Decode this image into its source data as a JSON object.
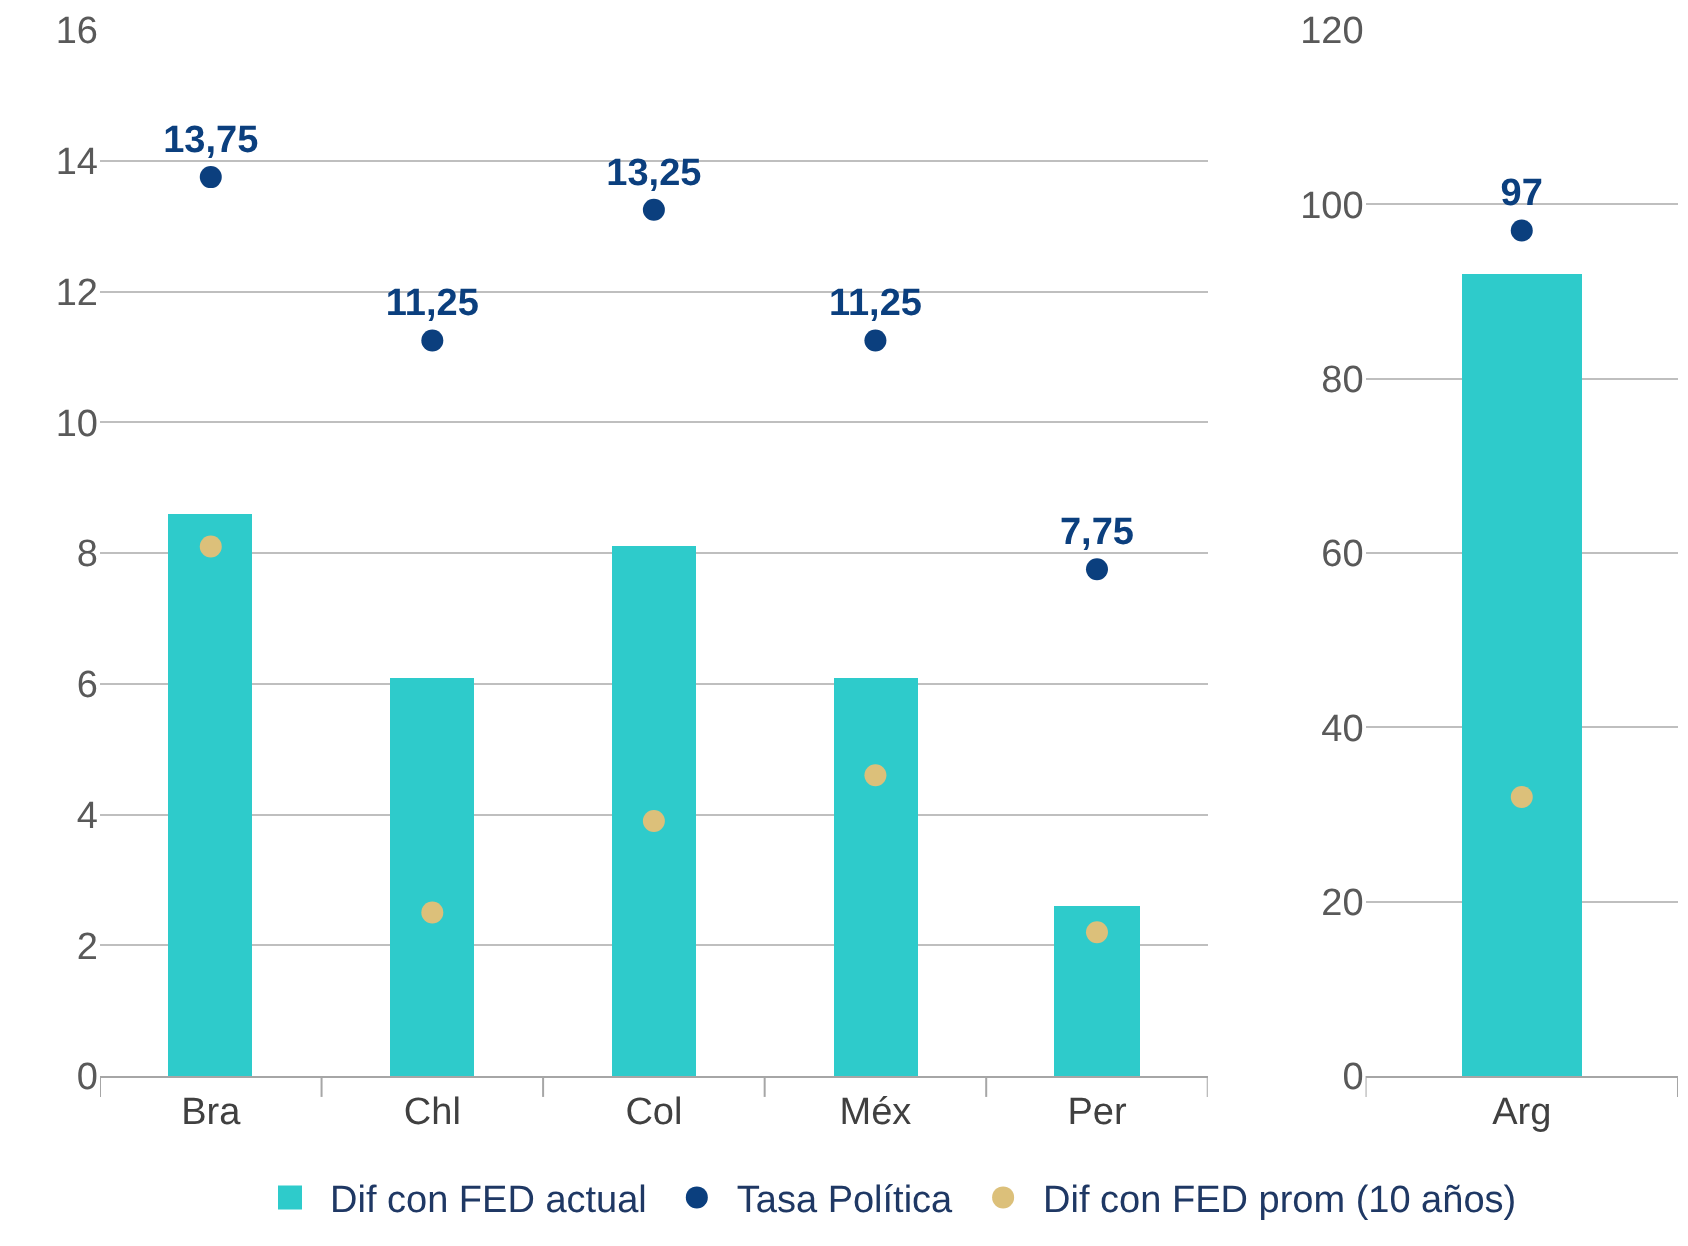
{
  "chart_data": [
    {
      "type": "bar",
      "categories": [
        "Bra",
        "Chl",
        "Col",
        "Méx",
        "Per"
      ],
      "ylim": [
        0,
        16
      ],
      "yticks": [
        0,
        2,
        4,
        6,
        8,
        10,
        12,
        14,
        16
      ],
      "grid": "y",
      "legend": "bottom",
      "marker": "circle",
      "series": [
        {
          "name": "Dif con FED actual",
          "color": "#2ecbcb",
          "values": [
            8.6,
            6.1,
            8.1,
            6.1,
            2.6
          ]
        },
        {
          "name": "Tasa Política",
          "type": "scatter",
          "color": "#0b3f7e",
          "values": [
            13.75,
            11.25,
            13.25,
            11.25,
            7.75
          ],
          "value_labels": [
            "13,75",
            "11,25",
            "13,25",
            "11,25",
            "7,75"
          ]
        },
        {
          "name": "Dif con FED prom (10 años)",
          "type": "scatter",
          "color": "#dcc07a",
          "values": [
            8.1,
            2.5,
            3.9,
            4.6,
            2.2
          ]
        }
      ]
    },
    {
      "type": "bar",
      "categories": [
        "Arg"
      ],
      "ylim": [
        0,
        120
      ],
      "yticks": [
        0,
        20,
        40,
        60,
        80,
        100,
        120
      ],
      "grid": "y",
      "marker": "circle",
      "series": [
        {
          "color": "#2ecbcb",
          "values": [
            92
          ]
        },
        {
          "type": "scatter",
          "color": "#0b3f7e",
          "values": [
            97
          ],
          "value_labels": [
            "97"
          ]
        },
        {
          "type": "scatter",
          "color": "#dcc07a",
          "values": [
            32
          ]
        }
      ]
    }
  ]
}
